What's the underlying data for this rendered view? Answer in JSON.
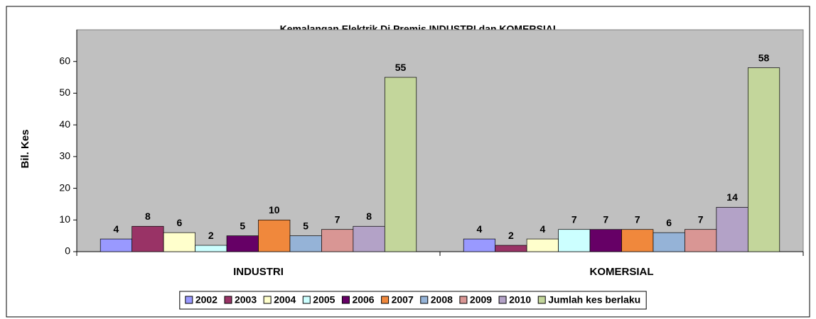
{
  "chart_data": {
    "type": "bar",
    "title": "Kemalangan Elektrik Di Premis INDUSTRI dan KOMERSIAL",
    "ylabel": "Bil. Kes",
    "categories": [
      "INDUSTRI",
      "KOMERSIAL"
    ],
    "series": [
      {
        "name": "2002",
        "color": "#9999ff",
        "values": [
          4,
          4
        ]
      },
      {
        "name": "2003",
        "color": "#993366",
        "values": [
          8,
          2
        ]
      },
      {
        "name": "2004",
        "color": "#ffffcc",
        "values": [
          6,
          4
        ]
      },
      {
        "name": "2005",
        "color": "#ccffff",
        "values": [
          2,
          7
        ]
      },
      {
        "name": "2006",
        "color": "#660066",
        "values": [
          5,
          7
        ]
      },
      {
        "name": "2007",
        "color": "#f0883c",
        "values": [
          10,
          7
        ]
      },
      {
        "name": "2008",
        "color": "#95b3d7",
        "values": [
          5,
          6
        ]
      },
      {
        "name": "2009",
        "color": "#d99694",
        "values": [
          7,
          7
        ]
      },
      {
        "name": "2010",
        "color": "#b3a2c7",
        "values": [
          8,
          14
        ]
      },
      {
        "name": "Jumlah kes berlaku",
        "color": "#c3d69b",
        "values": [
          55,
          58
        ]
      }
    ],
    "ylim": [
      0,
      70
    ],
    "yticks": [
      0,
      10,
      20,
      30,
      40,
      50,
      60
    ],
    "plot_bg": "#c0c0c0"
  }
}
